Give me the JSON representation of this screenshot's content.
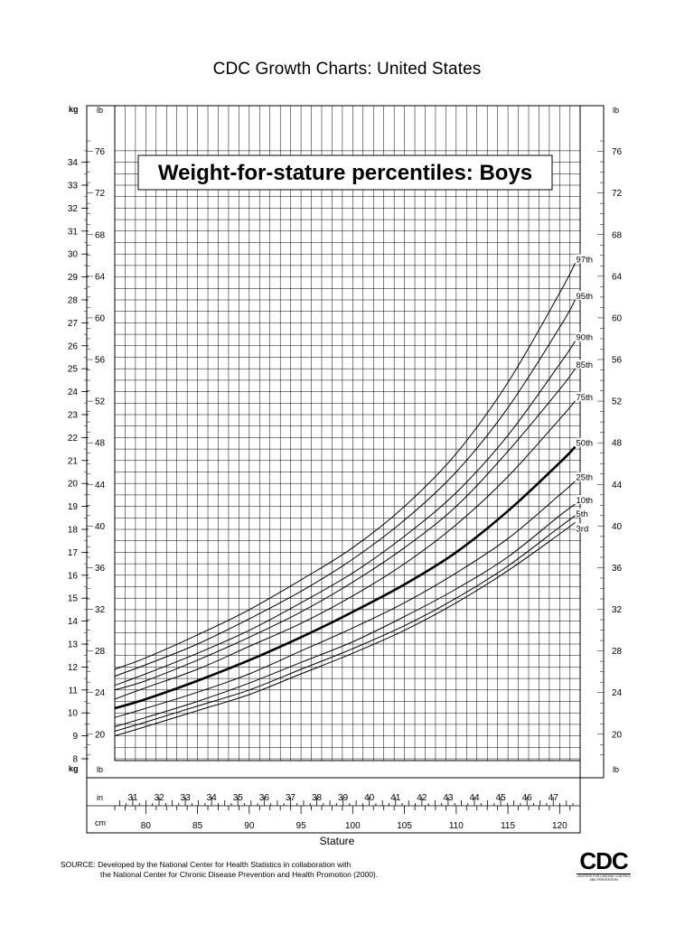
{
  "header": {
    "title": "CDC Growth Charts: United States"
  },
  "chart_data": {
    "type": "line",
    "title": "Weight-for-stature percentiles: Boys",
    "xlabel": "Stature",
    "x_unit_primary": "cm",
    "x_unit_secondary": "in",
    "y_unit_primary": "kg",
    "y_unit_secondary": "lb",
    "xlim_cm": [
      77,
      121.5
    ],
    "ylim_kg": [
      7.4,
      35
    ],
    "grid": true,
    "cm_ticks": [
      "80",
      "85",
      "90",
      "95",
      "100",
      "105",
      "110",
      "115",
      "120"
    ],
    "in_ticks": [
      "31",
      "32",
      "33",
      "34",
      "35",
      "36",
      "37",
      "38",
      "39",
      "40",
      "41",
      "42",
      "43",
      "44",
      "45",
      "46",
      "47"
    ],
    "kg_ticks": [
      "8",
      "9",
      "10",
      "11",
      "12",
      "13",
      "14",
      "15",
      "16",
      "17",
      "18",
      "19",
      "20",
      "21",
      "22",
      "23",
      "24",
      "25",
      "26",
      "27",
      "28",
      "29",
      "30",
      "31",
      "32",
      "33",
      "34"
    ],
    "lb_ticks": [
      "20",
      "24",
      "28",
      "32",
      "36",
      "40",
      "44",
      "48",
      "52",
      "56",
      "60",
      "64",
      "68",
      "72",
      "76"
    ],
    "x": [
      77,
      80,
      85,
      90,
      95,
      100,
      105,
      110,
      115,
      120,
      121.5
    ],
    "series": [
      {
        "name": "97th",
        "values": [
          11.9,
          12.4,
          13.4,
          14.5,
          15.8,
          17.2,
          19.0,
          21.3,
          24.4,
          28.3,
          29.6
        ]
      },
      {
        "name": "95th",
        "values": [
          11.6,
          12.1,
          13.0,
          14.1,
          15.3,
          16.7,
          18.4,
          20.5,
          23.3,
          26.8,
          28.0
        ]
      },
      {
        "name": "90th",
        "values": [
          11.2,
          11.7,
          12.6,
          13.6,
          14.8,
          16.1,
          17.7,
          19.6,
          22.1,
          25.2,
          26.2
        ]
      },
      {
        "name": "85th",
        "values": [
          11.0,
          11.4,
          12.3,
          13.3,
          14.4,
          15.7,
          17.2,
          19.0,
          21.4,
          24.1,
          25.0
        ]
      },
      {
        "name": "75th",
        "values": [
          10.6,
          11.1,
          11.9,
          12.9,
          13.9,
          15.1,
          16.5,
          18.2,
          20.3,
          22.8,
          23.6
        ]
      },
      {
        "name": "50th",
        "values": [
          10.2,
          10.6,
          11.4,
          12.3,
          13.3,
          14.4,
          15.6,
          17.0,
          18.8,
          20.9,
          21.6
        ]
      },
      {
        "name": "25th",
        "values": [
          9.8,
          10.2,
          10.9,
          11.7,
          12.7,
          13.7,
          14.8,
          16.1,
          17.6,
          19.5,
          20.1
        ]
      },
      {
        "name": "10th",
        "values": [
          9.4,
          9.8,
          10.5,
          11.3,
          12.2,
          13.1,
          14.2,
          15.4,
          16.8,
          18.6,
          19.1
        ]
      },
      {
        "name": "5th",
        "values": [
          9.2,
          9.6,
          10.3,
          11.0,
          11.9,
          12.8,
          13.8,
          15.0,
          16.4,
          18.1,
          18.6
        ]
      },
      {
        "name": "3rd",
        "values": [
          9.0,
          9.4,
          10.1,
          10.8,
          11.7,
          12.6,
          13.6,
          14.8,
          16.2,
          17.8,
          18.3
        ]
      }
    ]
  },
  "source": {
    "line1": "SOURCE: Developed by the National Center for Health Statistics in collaboration with",
    "line2": "the National Center for Chronic Disease Prevention and Health Promotion (2000)."
  },
  "logo": {
    "text": "CDC",
    "tagline": "CENTERS FOR DISEASE CONTROL AND PREVENTION"
  }
}
